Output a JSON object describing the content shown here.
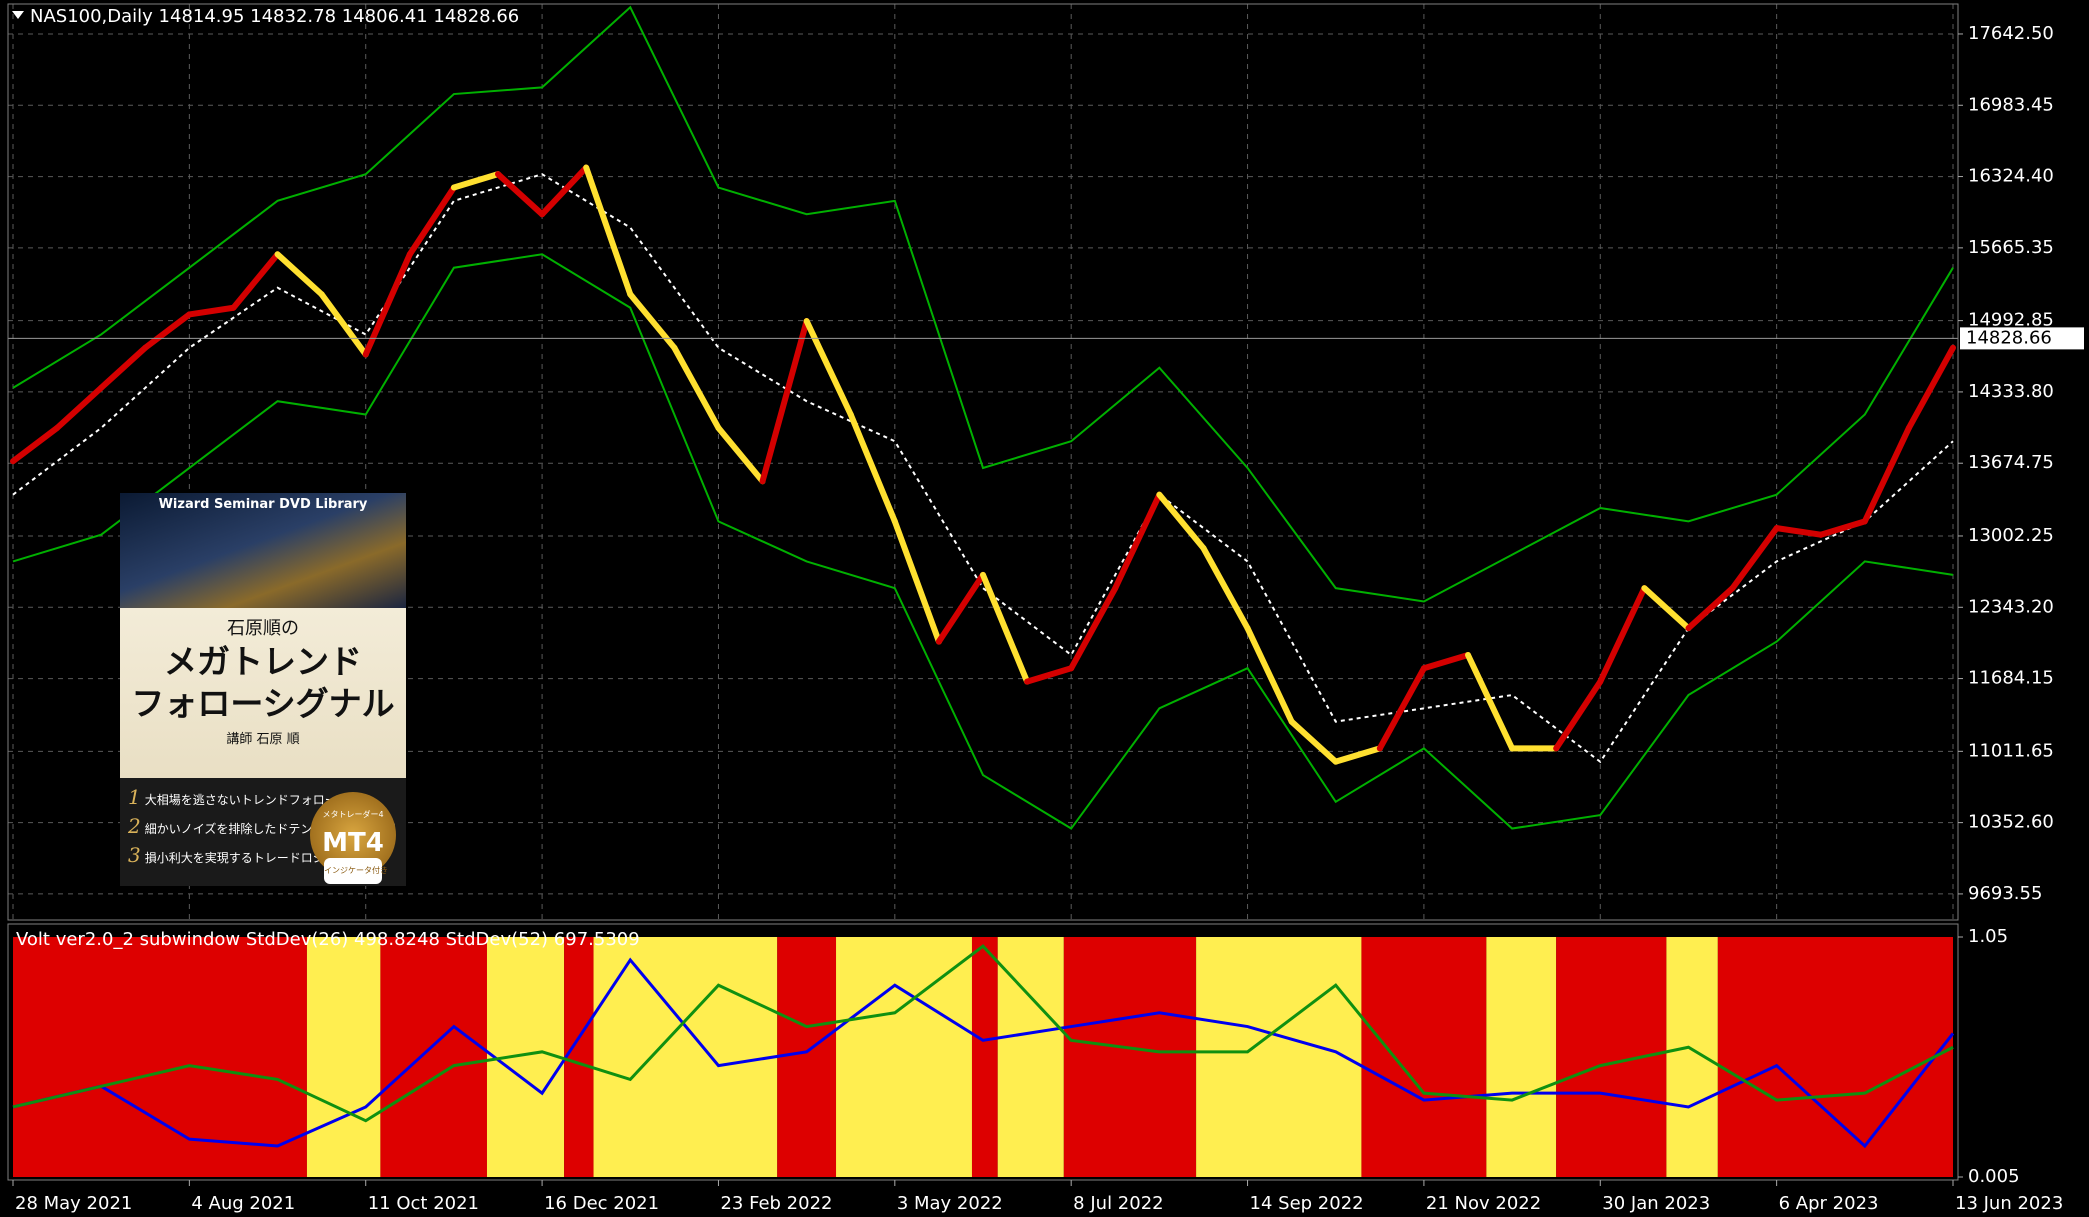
{
  "chart_data": {
    "type": "price",
    "title": "NAS100,Daily  14814.95 14832.78 14806.41 14828.66",
    "last_price": {
      "value": 14828.66,
      "label": "14828.66"
    },
    "xlim": [
      0,
      528
    ],
    "xticks": [
      {
        "value": 0,
        "label": "28 May 2021"
      },
      {
        "value": 48,
        "label": "4 Aug 2021"
      },
      {
        "value": 96,
        "label": "11 Oct 2021"
      },
      {
        "value": 144,
        "label": "16 Dec 2021"
      },
      {
        "value": 192,
        "label": "23 Feb 2022"
      },
      {
        "value": 240,
        "label": "3 May 2022"
      },
      {
        "value": 288,
        "label": "8 Jul 2022"
      },
      {
        "value": 336,
        "label": "14 Sep 2022"
      },
      {
        "value": 384,
        "label": "21 Nov 2022"
      },
      {
        "value": 432,
        "label": "30 Jan 2023"
      },
      {
        "value": 480,
        "label": "6 Apr 2023"
      },
      {
        "value": 528,
        "label": "13 Jun 2023"
      }
    ],
    "ylim": [
      9471,
      17901
    ],
    "yticks": [
      {
        "value": 17642.5,
        "label": "17642.50"
      },
      {
        "value": 16983.45,
        "label": "16983.45"
      },
      {
        "value": 16324.4,
        "label": "16324.40"
      },
      {
        "value": 15665.35,
        "label": "15665.35"
      },
      {
        "value": 14992.85,
        "label": "14992.85"
      },
      {
        "value": 14333.8,
        "label": "14333.80"
      },
      {
        "value": 13674.75,
        "label": "13674.75"
      },
      {
        "value": 13002.25,
        "label": "13002.25"
      },
      {
        "value": 12343.2,
        "label": "12343.20"
      },
      {
        "value": 11684.15,
        "label": "11684.15"
      },
      {
        "value": 11011.65,
        "label": "11011.65"
      },
      {
        "value": 10352.6,
        "label": "10352.60"
      },
      {
        "value": 9693.55,
        "label": "9693.55"
      }
    ],
    "grid": true,
    "price": {
      "x": [
        0,
        12,
        24,
        36,
        48,
        60,
        72,
        84,
        96,
        108,
        120,
        132,
        144,
        156,
        168,
        180,
        192,
        204,
        216,
        228,
        240,
        252,
        264,
        276,
        288,
        300,
        312,
        324,
        336,
        348,
        360,
        372,
        384,
        396,
        408,
        420,
        432,
        444,
        456,
        468,
        480,
        492,
        504,
        516,
        528
      ],
      "values": [
        13693,
        14001,
        14372,
        14742,
        15050,
        15112,
        15606,
        15236,
        14680,
        15606,
        16223,
        16347,
        15976,
        16408,
        15236,
        14742,
        14001,
        13508,
        14989,
        14125,
        13137,
        12026,
        12643,
        11656,
        11779,
        12520,
        13384,
        12890,
        12150,
        11286,
        10916,
        11039,
        11779,
        11902,
        11039,
        11039,
        11656,
        12520,
        12150,
        12520,
        13075,
        13014,
        13137,
        14001,
        14742
      ],
      "colors": [
        "#d40000",
        "#d40000",
        "#d40000",
        "#d40000",
        "#d40000",
        "#d40000",
        "#d40000",
        "#ffe030",
        "#ffe030",
        "#d40000",
        "#d40000",
        "#ffe030",
        "#d40000",
        "#d40000",
        "#ffe030",
        "#ffe030",
        "#ffe030",
        "#ffe030",
        "#d40000",
        "#ffe030",
        "#ffe030",
        "#ffe030",
        "#d40000",
        "#ffe030",
        "#d40000",
        "#d40000",
        "#d40000",
        "#ffe030",
        "#ffe030",
        "#ffe030",
        "#ffe030",
        "#ffe030",
        "#d40000",
        "#d40000",
        "#ffe030",
        "#ffe030",
        "#d40000",
        "#d40000",
        "#ffe030",
        "#d40000",
        "#d40000",
        "#d40000",
        "#d40000",
        "#d40000",
        "#d40000"
      ]
    },
    "bands": [
      {
        "color": "#00b000",
        "dashed": false,
        "x": [
          0,
          24,
          48,
          72,
          96,
          120,
          144,
          168,
          192,
          216,
          240,
          264,
          288,
          312,
          336,
          360,
          384,
          408,
          432,
          456,
          480,
          504,
          528
        ],
        "values": [
          14371,
          14865,
          15482,
          16100,
          16346,
          17087,
          17149,
          17889,
          16223,
          15976,
          16100,
          13631,
          13878,
          14557,
          13631,
          12520,
          12397,
          12829,
          13261,
          13137,
          13384,
          14125,
          15482
        ]
      },
      {
        "color": "#ffffff",
        "dashed": true,
        "x": [
          0,
          24,
          48,
          72,
          96,
          120,
          144,
          168,
          192,
          216,
          240,
          264,
          288,
          312,
          336,
          360,
          384,
          408,
          432,
          456,
          480,
          504,
          528
        ],
        "values": [
          13384,
          14001,
          14742,
          15297,
          14865,
          16100,
          16346,
          15853,
          14742,
          14248,
          13878,
          12520,
          11903,
          13384,
          12767,
          11286,
          11409,
          11532,
          10915,
          12150,
          12767,
          13137,
          13878
        ]
      },
      {
        "color": "#00b000",
        "dashed": false,
        "x": [
          0,
          24,
          48,
          72,
          96,
          120,
          144,
          168,
          192,
          216,
          240,
          264,
          288,
          312,
          336,
          360,
          384,
          408,
          432,
          456,
          480,
          504,
          528
        ],
        "values": [
          12767,
          13014,
          13631,
          14248,
          14125,
          15482,
          15606,
          15112,
          13137,
          12767,
          12520,
          10792,
          10298,
          11409,
          11780,
          10545,
          11039,
          10298,
          10422,
          11532,
          12026,
          12767,
          12643
        ]
      }
    ],
    "subwindow": {
      "title": "Volt ver2.0_2 subwindow  StdDev(26) 498.8248  StdDev(52) 697.5309",
      "ylim": [
        0.005,
        1.05
      ],
      "yticks": [
        1.05,
        0.005
      ],
      "regimes": [
        {
          "start": 0,
          "end": 80,
          "color": "#dd0000"
        },
        {
          "start": 80,
          "end": 100,
          "color": "#ffee50"
        },
        {
          "start": 100,
          "end": 129,
          "color": "#dd0000"
        },
        {
          "start": 129,
          "end": 150,
          "color": "#ffee50"
        },
        {
          "start": 150,
          "end": 158,
          "color": "#dd0000"
        },
        {
          "start": 158,
          "end": 208,
          "color": "#ffee50"
        },
        {
          "start": 208,
          "end": 224,
          "color": "#dd0000"
        },
        {
          "start": 224,
          "end": 261,
          "color": "#ffee50"
        },
        {
          "start": 261,
          "end": 268,
          "color": "#dd0000"
        },
        {
          "start": 268,
          "end": 286,
          "color": "#ffee50"
        },
        {
          "start": 286,
          "end": 322,
          "color": "#dd0000"
        },
        {
          "start": 322,
          "end": 367,
          "color": "#ffee50"
        },
        {
          "start": 367,
          "end": 401,
          "color": "#dd0000"
        },
        {
          "start": 401,
          "end": 420,
          "color": "#ffee50"
        },
        {
          "start": 420,
          "end": 450,
          "color": "#dd0000"
        },
        {
          "start": 450,
          "end": 464,
          "color": "#ffee50"
        },
        {
          "start": 464,
          "end": 528,
          "color": "#dd0000"
        }
      ],
      "series": [
        {
          "color": "#0000ee",
          "x": [
            0,
            24,
            48,
            72,
            96,
            120,
            144,
            168,
            192,
            216,
            240,
            264,
            288,
            312,
            336,
            360,
            384,
            408,
            432,
            456,
            480,
            504,
            528
          ],
          "values": [
            0.31,
            0.4,
            0.17,
            0.14,
            0.31,
            0.66,
            0.37,
            0.95,
            0.49,
            0.55,
            0.84,
            0.6,
            0.66,
            0.72,
            0.66,
            0.55,
            0.34,
            0.37,
            0.37,
            0.31,
            0.49,
            0.14,
            0.63
          ]
        },
        {
          "color": "#109010",
          "x": [
            0,
            24,
            48,
            72,
            96,
            120,
            144,
            168,
            192,
            216,
            240,
            264,
            288,
            312,
            336,
            360,
            384,
            408,
            432,
            456,
            480,
            504,
            528
          ],
          "values": [
            0.31,
            0.4,
            0.49,
            0.43,
            0.25,
            0.49,
            0.55,
            0.43,
            0.84,
            0.66,
            0.72,
            1.01,
            0.6,
            0.55,
            0.55,
            0.84,
            0.37,
            0.34,
            0.49,
            0.57,
            0.34,
            0.37,
            0.57
          ]
        }
      ]
    }
  },
  "ad": {
    "library": "Wizard Seminar DVD Library",
    "author_line": "石原順の",
    "title_1": "メガトレンド",
    "title_2": "フォローシグナル",
    "lecturer": "講師 石原 順",
    "points": [
      {
        "num": "1",
        "text": "大相場を逃さないトレンドフォロー"
      },
      {
        "num": "2",
        "text": "細かいノイズを排除したドテンシステムを採用"
      },
      {
        "num": "3",
        "text": "損小利大を実現するトレードロジック"
      }
    ],
    "badge_top": "メタトレーダー4",
    "badge_main": "MT4",
    "badge_bottom": "インジケータ付き"
  }
}
